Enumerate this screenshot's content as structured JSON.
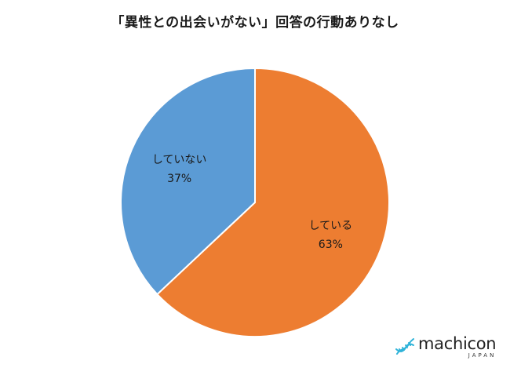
{
  "chart_data": {
    "type": "pie",
    "title": "「異性との出会いがない」回答の行動ありなし",
    "slices": [
      {
        "label": "している",
        "value": 63,
        "display": "63%",
        "color": "#ed7d31"
      },
      {
        "label": "していない",
        "value": 37,
        "display": "37%",
        "color": "#5b9bd5"
      }
    ],
    "start_angle_deg": 0,
    "direction": "clockwise",
    "legend": "none"
  },
  "logo": {
    "wordmark": "machicon",
    "sub": "JAPAN",
    "icon": "dna-helix-icon",
    "accent": "#2fb3d9"
  }
}
